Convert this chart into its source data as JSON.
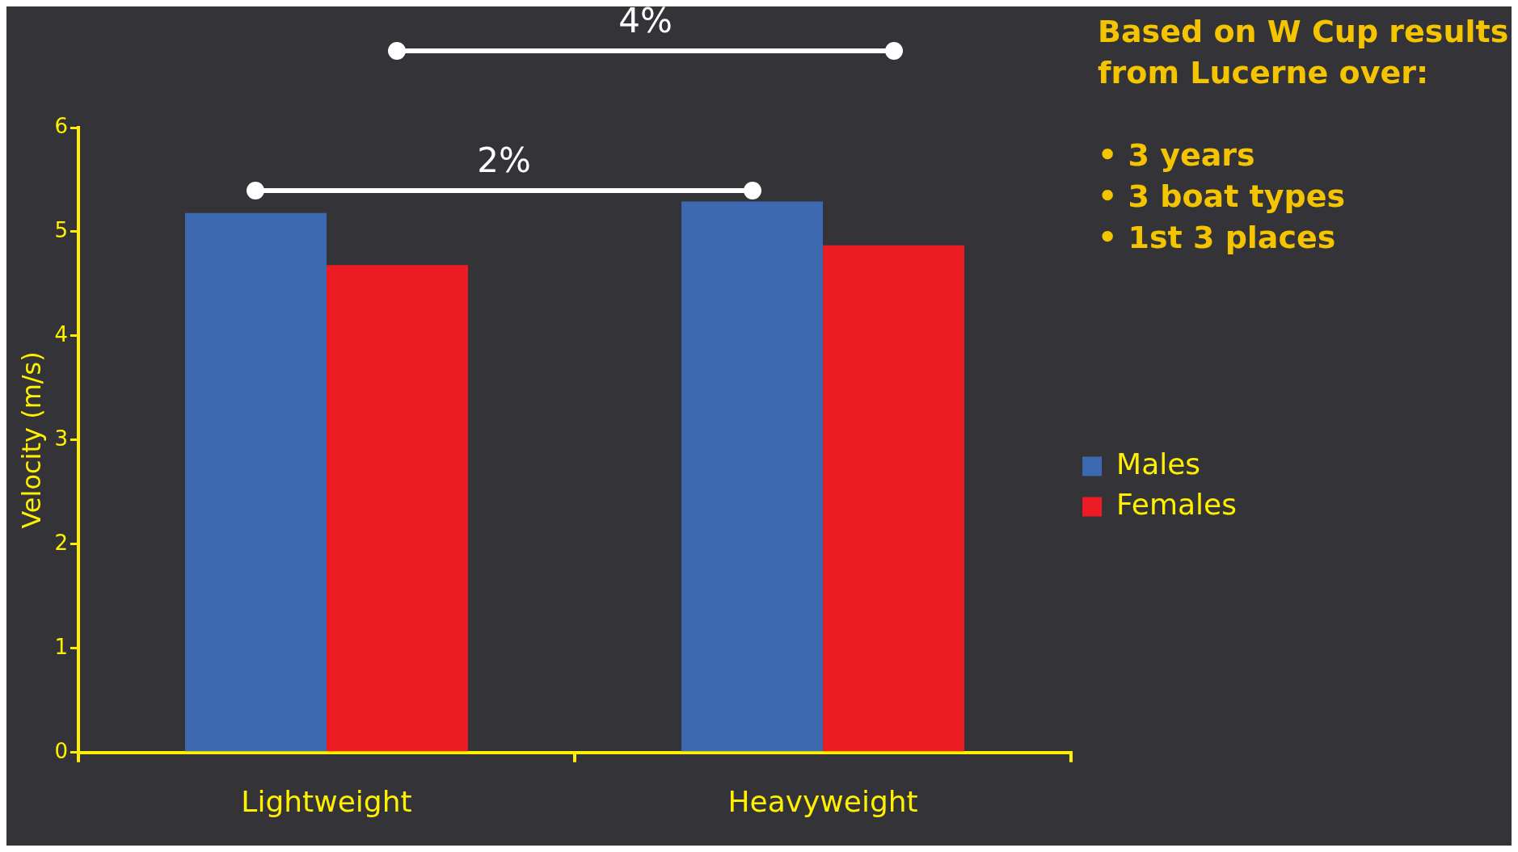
{
  "chart_data": {
    "type": "bar",
    "ylabel": "Velocity (m/s)",
    "categories": [
      "Lightweight",
      "Heavyweight"
    ],
    "series": [
      {
        "name": "Males",
        "color": "#3d69b0",
        "values": [
          5.18,
          5.29
        ]
      },
      {
        "name": "Females",
        "color": "#ed1c24",
        "values": [
          4.68,
          4.87
        ]
      }
    ],
    "ylim": [
      0,
      6
    ],
    "yticks": [
      0,
      1,
      2,
      3,
      4,
      5,
      6
    ],
    "legend": "right",
    "annotations": [
      "4%",
      "2%",
      "Based on W Cup results from Lucerne over:",
      "• 3 years",
      "• 3 boat types",
      "• 1st 3 places"
    ]
  }
}
